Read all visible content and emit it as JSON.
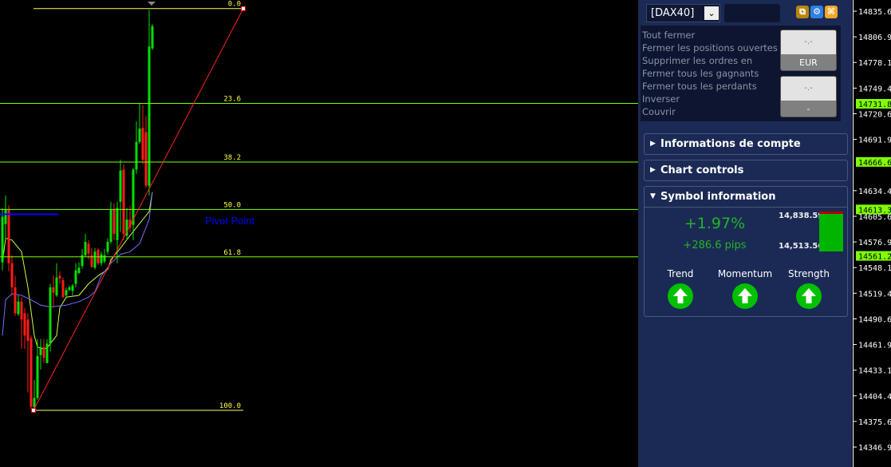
{
  "chart_data": {
    "type": "candlestick",
    "ylim": [
      14336,
      14852
    ],
    "y_ticks": [
      "14835.65",
      "14806.90",
      "14778.15",
      "14749.40",
      "14720.65",
      "14691.90",
      "14634.40",
      "14605.65",
      "14576.90",
      "14548.15",
      "14519.40",
      "14490.65",
      "14461.90",
      "14433.15",
      "14404.40",
      "14375.65",
      "14346.90"
    ],
    "price_markers": [
      "14731.81",
      "14666.61",
      "14613.33",
      "14561.27"
    ],
    "candles": [
      [
        14554,
        14615,
        14545,
        14605
      ],
      [
        14597,
        14629,
        14579,
        14613
      ],
      [
        14613,
        14618,
        14544,
        14553
      ],
      [
        14553,
        14562,
        14517,
        14526
      ],
      [
        14526,
        14539,
        14494,
        14497
      ],
      [
        14496,
        14517,
        14494,
        14510
      ],
      [
        14510,
        14515,
        14457,
        14490
      ],
      [
        14497,
        14503,
        14457,
        14472
      ],
      [
        14490,
        14497,
        14408,
        14466
      ],
      [
        14469,
        14472,
        14390,
        14392
      ],
      [
        14392,
        14422,
        14390,
        14402
      ],
      [
        14402,
        14468,
        14400,
        14449
      ],
      [
        14450,
        14468,
        14434,
        14459
      ],
      [
        14459,
        14468,
        14441,
        14447
      ],
      [
        14441,
        14468,
        14441,
        14463
      ],
      [
        14463,
        14530,
        14454,
        14526
      ],
      [
        14526,
        14539,
        14503,
        14520
      ],
      [
        14517,
        14553,
        14515,
        14537
      ],
      [
        14539,
        14544,
        14530,
        14536
      ],
      [
        14534,
        14537,
        14514,
        14515
      ],
      [
        14517,
        14526,
        14515,
        14523
      ],
      [
        14523,
        14528,
        14522,
        14526
      ],
      [
        14522,
        14530,
        14517,
        14528
      ],
      [
        14530,
        14553,
        14526,
        14545
      ],
      [
        14542,
        14554,
        14541,
        14548
      ],
      [
        14550,
        14569,
        14547,
        14562
      ],
      [
        14562,
        14586,
        14560,
        14577
      ],
      [
        14575,
        14579,
        14557,
        14564
      ],
      [
        14562,
        14570,
        14548,
        14549
      ],
      [
        14548,
        14570,
        14546,
        14566
      ],
      [
        14568,
        14570,
        14551,
        14553
      ],
      [
        14553,
        14566,
        14550,
        14563
      ],
      [
        14555,
        14569,
        14553,
        14562
      ],
      [
        14566,
        14581,
        14563,
        14577
      ],
      [
        14577,
        14622,
        14575,
        14613
      ],
      [
        14613,
        14620,
        14579,
        14586
      ],
      [
        14579,
        14622,
        14553,
        14615
      ],
      [
        14622,
        14669,
        14588,
        14657
      ],
      [
        14658,
        14664,
        14579,
        14586
      ],
      [
        14584,
        14615,
        14579,
        14602
      ],
      [
        14602,
        14617,
        14588,
        14593
      ],
      [
        14596,
        14660,
        14579,
        14658
      ],
      [
        14658,
        14712,
        14653,
        14689
      ],
      [
        14689,
        14732,
        14687,
        14704
      ],
      [
        14705,
        14730,
        14664,
        14669
      ],
      [
        14700,
        14718,
        14638,
        14640
      ],
      [
        14640,
        14837,
        14629,
        14796
      ],
      [
        14794,
        14821,
        14792,
        14819
      ]
    ],
    "candle_fields": [
      "open",
      "high",
      "low",
      "close"
    ],
    "ma_fast": [
      [
        0,
        14553
      ],
      [
        1,
        14581
      ],
      [
        3,
        14579
      ],
      [
        6,
        14566
      ],
      [
        8,
        14526
      ],
      [
        10,
        14472
      ],
      [
        11,
        14459
      ],
      [
        13,
        14457
      ],
      [
        14,
        14458
      ],
      [
        17,
        14472
      ],
      [
        18,
        14503
      ],
      [
        20,
        14515
      ],
      [
        24,
        14517
      ],
      [
        27,
        14530
      ],
      [
        30,
        14539
      ],
      [
        33,
        14546
      ],
      [
        34,
        14557
      ],
      [
        37,
        14570
      ],
      [
        40,
        14584
      ],
      [
        42,
        14593
      ],
      [
        44,
        14602
      ],
      [
        46,
        14611
      ],
      [
        47,
        14633
      ]
    ],
    "ma_slow": [
      [
        0,
        14472
      ],
      [
        1,
        14512
      ],
      [
        3,
        14519
      ],
      [
        6,
        14517
      ],
      [
        9,
        14512
      ],
      [
        12,
        14506
      ],
      [
        15,
        14504
      ],
      [
        20,
        14506
      ],
      [
        24,
        14510
      ],
      [
        27,
        14515
      ],
      [
        29,
        14521
      ],
      [
        31,
        14539
      ],
      [
        34,
        14553
      ],
      [
        37,
        14563
      ],
      [
        40,
        14566
      ],
      [
        43,
        14575
      ],
      [
        44,
        14584
      ],
      [
        46,
        14602
      ],
      [
        47,
        14633
      ]
    ],
    "fibonacci": {
      "high": 14838.59,
      "low": 14388.07,
      "levels": [
        {
          "label": "0.0",
          "ratio": 0.0
        },
        {
          "label": "23.6",
          "ratio": 0.236
        },
        {
          "label": "38.2",
          "ratio": 0.382
        },
        {
          "label": "50.0",
          "ratio": 0.5
        },
        {
          "label": "61.8",
          "ratio": 0.618
        },
        {
          "label": "100.0",
          "ratio": 1.0
        }
      ]
    },
    "pivot": {
      "label": "Pivot Point",
      "price": 14608
    },
    "colors": {
      "bull": "#00e000",
      "bear": "#ff1a1a",
      "ma_fast": "#c8ff40",
      "ma_slow": "#7070ff",
      "fib": "#80ff00",
      "fib_ends": "#ffff60",
      "trend": "#ff2020",
      "pivot": "#0000ff"
    }
  },
  "panel": {
    "symbol": "[DAX40]",
    "actions": [
      "Tout fermer",
      "Fermer les positions ouvertes",
      "Supprimer les ordres en",
      "Fermer tous les gagnants",
      "Fermer tous les perdants",
      "Inverser",
      "Couvrir"
    ],
    "button1": {
      "value": "-.-",
      "label": "EUR"
    },
    "button2": {
      "value": "-.-",
      "label": "-"
    },
    "icons": [
      "copy-icon",
      "gear-icon",
      "layout-icon"
    ],
    "sections": {
      "account": "Informations de compte",
      "chart_controls": "Chart controls",
      "symbol_info": "Symbol information"
    },
    "symbol_info": {
      "change_pct": "+1.97%",
      "change_pips": "+286.6 pips",
      "high": "14,838.59",
      "low": "14,513.56",
      "indicators": [
        {
          "label": "Trend",
          "direction": "up"
        },
        {
          "label": "Momentum",
          "direction": "up"
        },
        {
          "label": "Strength",
          "direction": "up"
        }
      ]
    }
  }
}
